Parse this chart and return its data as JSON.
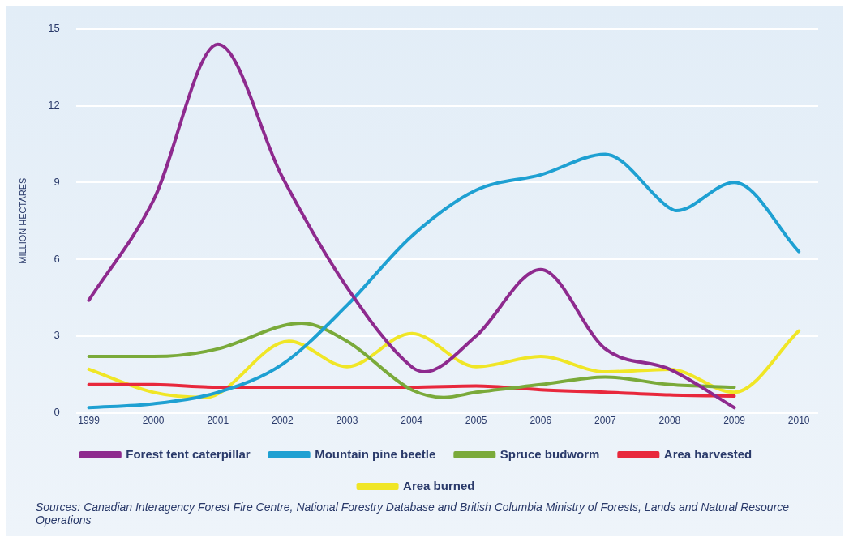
{
  "chart_data": {
    "type": "line",
    "ylabel": "MILLION HECTARES",
    "xlim": [
      1998.8,
      2010.3
    ],
    "xticks": [
      1999,
      2000,
      2001,
      2002,
      2003,
      2004,
      2005,
      2006,
      2007,
      2008,
      2009,
      2010
    ],
    "ylim": [
      0,
      15
    ],
    "yticks": [
      0,
      3,
      6,
      9,
      12,
      15
    ],
    "grid": "y",
    "legend": "bottom",
    "marker": "none",
    "line_style": "solid",
    "series": [
      {
        "name": "Forest tent caterpillar",
        "color": "#8e2a8e",
        "x": [
          1999,
          2000,
          2001,
          2002,
          2003,
          2004,
          2004.2,
          2005,
          2006,
          2007,
          2008,
          2009
        ],
        "values": [
          4.4,
          8.3,
          14.4,
          9.2,
          4.9,
          1.8,
          1.6,
          3.0,
          5.6,
          2.5,
          1.7,
          0.2
        ]
      },
      {
        "name": "Mountain pine beetle",
        "color": "#1ea0d2",
        "x": [
          1999,
          2000,
          2001,
          2002,
          2003,
          2004,
          2005,
          2006,
          2007,
          2008,
          2008.1,
          2009,
          2010
        ],
        "values": [
          0.2,
          0.35,
          0.8,
          1.9,
          4.2,
          6.9,
          8.7,
          9.3,
          10.1,
          8.0,
          7.9,
          9.0,
          6.3
        ]
      },
      {
        "name": "Spruce budworm",
        "color": "#7aaa3a",
        "x": [
          1999,
          2000,
          2001,
          2002,
          2002.3,
          2003,
          2004,
          2004.5,
          2005,
          2006,
          2007,
          2008,
          2009
        ],
        "values": [
          2.2,
          2.2,
          2.5,
          3.4,
          3.5,
          2.8,
          0.9,
          0.6,
          0.8,
          1.1,
          1.4,
          1.1,
          1.0
        ]
      },
      {
        "name": "Area harvested",
        "color": "#e8283c",
        "x": [
          1999,
          2000,
          2001,
          2002,
          2003,
          2004,
          2005,
          2006,
          2007,
          2008,
          2009
        ],
        "values": [
          1.1,
          1.1,
          1.0,
          1.0,
          1.0,
          1.0,
          1.05,
          0.9,
          0.8,
          0.7,
          0.65
        ]
      },
      {
        "name": "Area burned",
        "color": "#f0e626",
        "x": [
          1999,
          2000,
          2000.8,
          2002.1,
          2003,
          2004,
          2005,
          2006,
          2007,
          2008,
          2009,
          2010
        ],
        "values": [
          1.7,
          0.8,
          0.6,
          2.8,
          1.8,
          3.1,
          1.8,
          2.2,
          1.6,
          1.7,
          0.8,
          3.2
        ]
      }
    ],
    "annotations": [
      "Sources: Canadian Interagency Forest Fire Centre, National Forestry Database and British Columbia Ministry of Forests, Lands and Natural Resource Operations"
    ]
  }
}
